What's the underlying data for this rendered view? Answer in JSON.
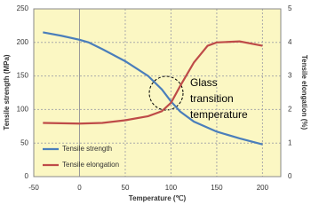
{
  "chart_data": {
    "type": "line",
    "x_label": "Temperature (℃)",
    "y_label": "Tensile strength (MPa)",
    "y2_label": "Tensile elongation (%)",
    "annotation": [
      "Glass",
      "transition",
      "temperature"
    ],
    "xlim": [
      -50,
      220
    ],
    "xticks": [
      -50,
      0,
      50,
      100,
      150,
      200
    ],
    "ylim": [
      0,
      250
    ],
    "yticks": [
      0,
      50,
      100,
      150,
      200,
      250
    ],
    "y2lim": [
      0,
      5
    ],
    "y2ticks": [
      0,
      1,
      2,
      3,
      4,
      5
    ],
    "grid": true,
    "legend": "lower left",
    "series": [
      {
        "name": "Tensile strength",
        "color": "#4a7ebb",
        "x": [
          -40,
          -20,
          0,
          10,
          25,
          50,
          75,
          90,
          100,
          110,
          125,
          150,
          175,
          200
        ],
        "values": [
          215,
          210,
          204,
          200,
          190,
          172,
          150,
          130,
          112,
          97,
          82,
          67,
          57,
          48
        ]
      },
      {
        "name": "Tensile elongation",
        "color": "#be4b48",
        "axis": "y2",
        "x": [
          -40,
          0,
          25,
          50,
          75,
          90,
          100,
          110,
          125,
          140,
          150,
          175,
          200
        ],
        "values": [
          1.6,
          1.58,
          1.6,
          1.68,
          1.8,
          1.95,
          2.2,
          2.7,
          3.4,
          3.9,
          4.0,
          4.03,
          3.9
        ]
      }
    ]
  }
}
